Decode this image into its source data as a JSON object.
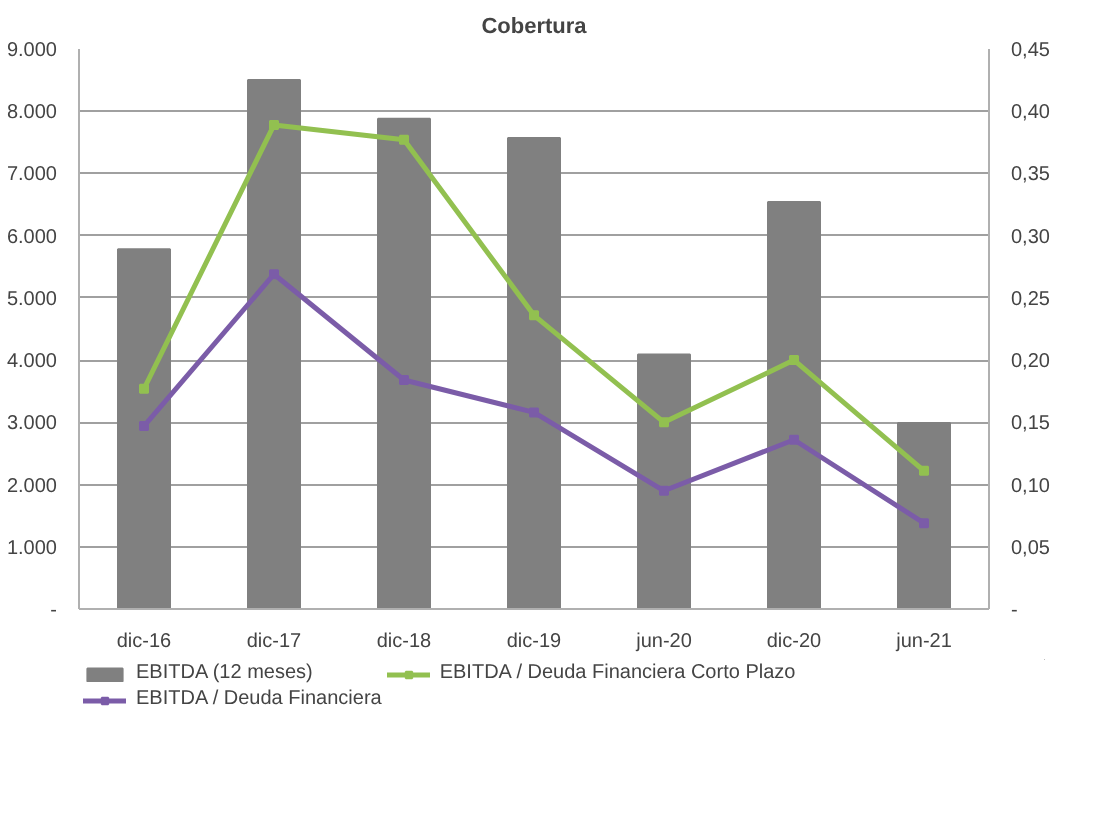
{
  "chart_data": {
    "type": "bar",
    "title": "Cobertura",
    "categories": [
      "dic-16",
      "dic-17",
      "dic-18",
      "dic-19",
      "jun-20",
      "dic-20",
      "jun-21"
    ],
    "series": [
      {
        "name": "EBITDA (12 meses)",
        "color": "#808080",
        "values": [
          5780,
          8500,
          7880,
          7570,
          4090,
          6540,
          2990
        ]
      },
      {
        "name": "EBITDA / Deuda Financiera Corto Plazo",
        "type": "line",
        "axis": "y2",
        "color": "#92c050",
        "values": [
          0.177,
          0.389,
          0.377,
          0.236,
          0.15,
          0.2,
          0.111
        ]
      },
      {
        "name": "EBITDA / Deuda Financiera",
        "type": "line",
        "axis": "y2",
        "color": "#7b5ca8",
        "values": [
          0.147,
          0.269,
          0.184,
          0.158,
          0.095,
          0.136,
          0.069
        ]
      }
    ],
    "ylim": [
      0,
      9000
    ],
    "yticks": [
      {
        "value": 0,
        "label": "-"
      },
      {
        "value": 1000,
        "label": "1.000"
      },
      {
        "value": 2000,
        "label": "2.000"
      },
      {
        "value": 3000,
        "label": "3.000"
      },
      {
        "value": 4000,
        "label": "4.000"
      },
      {
        "value": 5000,
        "label": "5.000"
      },
      {
        "value": 6000,
        "label": "6.000"
      },
      {
        "value": 7000,
        "label": "7.000"
      },
      {
        "value": 8000,
        "label": "8.000"
      },
      {
        "value": 9000,
        "label": "9.000"
      }
    ],
    "y2lim": [
      0,
      0.45
    ],
    "y2ticks": [
      {
        "value": 0,
        "label": "-"
      },
      {
        "value": 0.05,
        "label": "0,05"
      },
      {
        "value": 0.1,
        "label": "0,10"
      },
      {
        "value": 0.15,
        "label": "0,15"
      },
      {
        "value": 0.2,
        "label": "0,20"
      },
      {
        "value": 0.25,
        "label": "0,25"
      },
      {
        "value": 0.3,
        "label": "0,30"
      },
      {
        "value": 0.35,
        "label": "0,35"
      },
      {
        "value": 0.4,
        "label": "0,40"
      },
      {
        "value": 0.45,
        "label": "0,45"
      }
    ],
    "grid": "y",
    "legend": "bottom",
    "marker": "square",
    "line_style": "solid"
  }
}
